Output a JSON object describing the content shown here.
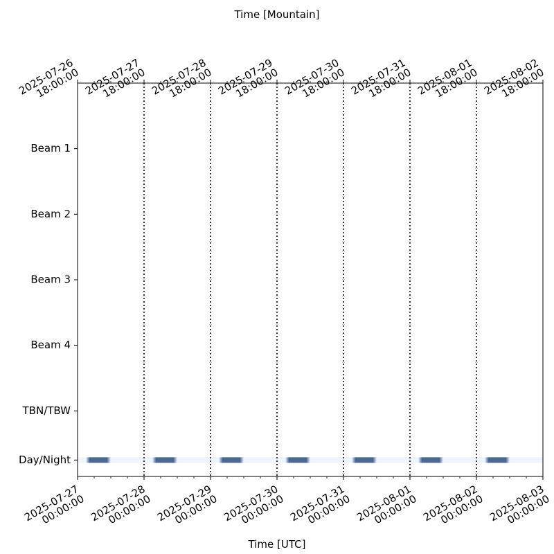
{
  "chart_data": {
    "type": "timeline",
    "x_label": "Time [UTC]",
    "x2_label": "Time [Mountain]",
    "xlim": [
      "2025-07-27T00:00",
      "2025-08-03T00:00"
    ],
    "xticks": [
      {
        "value": "2025-07-27T00:00",
        "label": "2025-07-27\n00:00:00"
      },
      {
        "value": "2025-07-28T00:00",
        "label": "2025-07-28\n00:00:00"
      },
      {
        "value": "2025-07-29T00:00",
        "label": "2025-07-29\n00:00:00"
      },
      {
        "value": "2025-07-30T00:00",
        "label": "2025-07-30\n00:00:00"
      },
      {
        "value": "2025-07-31T00:00",
        "label": "2025-07-31\n00:00:00"
      },
      {
        "value": "2025-08-01T00:00",
        "label": "2025-08-01\n00:00:00"
      },
      {
        "value": "2025-08-02T00:00",
        "label": "2025-08-02\n00:00:00"
      },
      {
        "value": "2025-08-03T00:00",
        "label": "2025-08-03\n00:00:00"
      }
    ],
    "x2lim": [
      "2025-07-26T18:00",
      "2025-08-02T18:00"
    ],
    "x2ticks": [
      {
        "value": "2025-07-26T18:00",
        "label": "2025-07-26\n18:00:00"
      },
      {
        "value": "2025-07-27T18:00",
        "label": "2025-07-27\n18:00:00"
      },
      {
        "value": "2025-07-28T18:00",
        "label": "2025-07-28\n18:00:00"
      },
      {
        "value": "2025-07-29T18:00",
        "label": "2025-07-29\n18:00:00"
      },
      {
        "value": "2025-07-30T18:00",
        "label": "2025-07-30\n18:00:00"
      },
      {
        "value": "2025-07-31T18:00",
        "label": "2025-07-31\n18:00:00"
      },
      {
        "value": "2025-08-01T18:00",
        "label": "2025-08-01\n18:00:00"
      },
      {
        "value": "2025-08-02T18:00",
        "label": "2025-08-02\n18:00:00"
      }
    ],
    "ylim": [
      -0.25,
      5.75
    ],
    "yticks": [
      {
        "value": 4.75,
        "label": "Beam 1"
      },
      {
        "value": 3.75,
        "label": "Beam 2"
      },
      {
        "value": 2.75,
        "label": "Beam 3"
      },
      {
        "value": 1.75,
        "label": "Beam 4"
      },
      {
        "value": 0.75,
        "label": "TBN/TBW"
      },
      {
        "value": 0,
        "label": "Day/Night"
      }
    ],
    "grid": true,
    "color": "#4a6891",
    "night_intervals": [
      [
        "2025-07-27T03:00",
        "2025-07-27T12:00"
      ],
      [
        "2025-07-28T03:00",
        "2025-07-28T12:00"
      ],
      [
        "2025-07-29T03:00",
        "2025-07-29T12:00"
      ],
      [
        "2025-07-30T03:00",
        "2025-07-30T12:00"
      ],
      [
        "2025-07-31T03:00",
        "2025-07-31T12:00"
      ],
      [
        "2025-08-01T03:00",
        "2025-08-01T12:00"
      ],
      [
        "2025-08-02T03:00",
        "2025-08-02T12:00"
      ]
    ]
  }
}
